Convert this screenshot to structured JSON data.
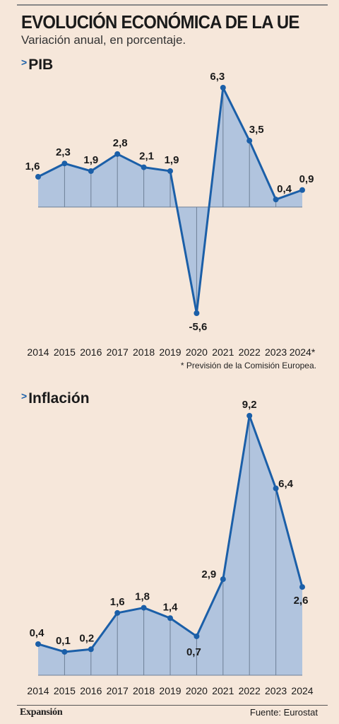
{
  "header": {
    "title": "EVOLUCIÓN ECONÓMICA DE LA UE",
    "subtitle": "Variación anual, en porcentaje."
  },
  "footer": {
    "footnote": "* Previsión de la Comisión Europea.",
    "logo": "Expansión",
    "source": "Fuente: Eurostat"
  },
  "colors": {
    "line": "#1b5fa8",
    "area": "#b1c4de",
    "background": "#f6e7da"
  },
  "chart_data": [
    {
      "type": "area",
      "title": "PIB",
      "categories": [
        "2014",
        "2015",
        "2016",
        "2017",
        "2018",
        "2019",
        "2020",
        "2021",
        "2022",
        "2023",
        "2024*"
      ],
      "labels": [
        "1,6",
        "2,3",
        "1,9",
        "2,8",
        "2,1",
        "1,9",
        "-5,6",
        "6,3",
        "3,5",
        "0,4",
        "0,9"
      ],
      "values": [
        1.6,
        2.3,
        1.9,
        2.8,
        2.1,
        1.9,
        -5.6,
        6.3,
        3.5,
        0.4,
        0.9
      ],
      "ylim": [
        -5.6,
        6.3
      ],
      "grid": false
    },
    {
      "type": "area",
      "title": "Inflación",
      "categories": [
        "2014",
        "2015",
        "2016",
        "2017",
        "2018",
        "2019",
        "2020",
        "2021",
        "2022",
        "2023",
        "2024"
      ],
      "labels": [
        "0,4",
        "0,1",
        "0,2",
        "1,6",
        "1,8",
        "1,4",
        "0,7",
        "2,9",
        "9,2",
        "6,4",
        "2,6"
      ],
      "values": [
        0.4,
        0.1,
        0.2,
        1.6,
        1.8,
        1.4,
        0.7,
        2.9,
        9.2,
        6.4,
        2.6
      ],
      "ylim": [
        -0.8,
        9.2
      ],
      "grid": false
    }
  ]
}
